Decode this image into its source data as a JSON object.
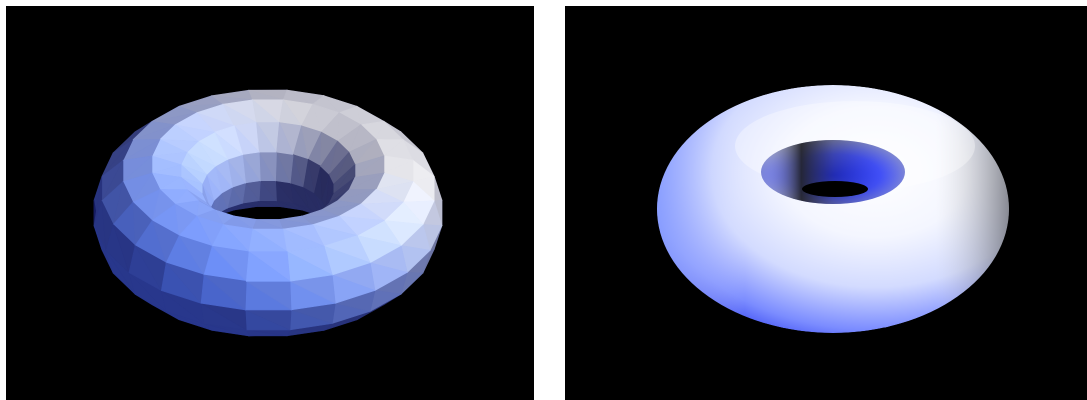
{
  "figure": {
    "panels": [
      {
        "id": "flat",
        "shading": "flat",
        "subject": "torus"
      },
      {
        "id": "smooth",
        "shading": "smooth",
        "subject": "torus"
      }
    ]
  },
  "colors": {
    "background": "#000000",
    "page": "#ffffff",
    "highlight": "#ffffff",
    "light_blue": "#c8d4ff",
    "mid_blue": "#6f82ff",
    "deep_blue": "#2a3cf0",
    "shadow_gray": "#3a3a3a",
    "light_gray": "#d9d9d9"
  }
}
